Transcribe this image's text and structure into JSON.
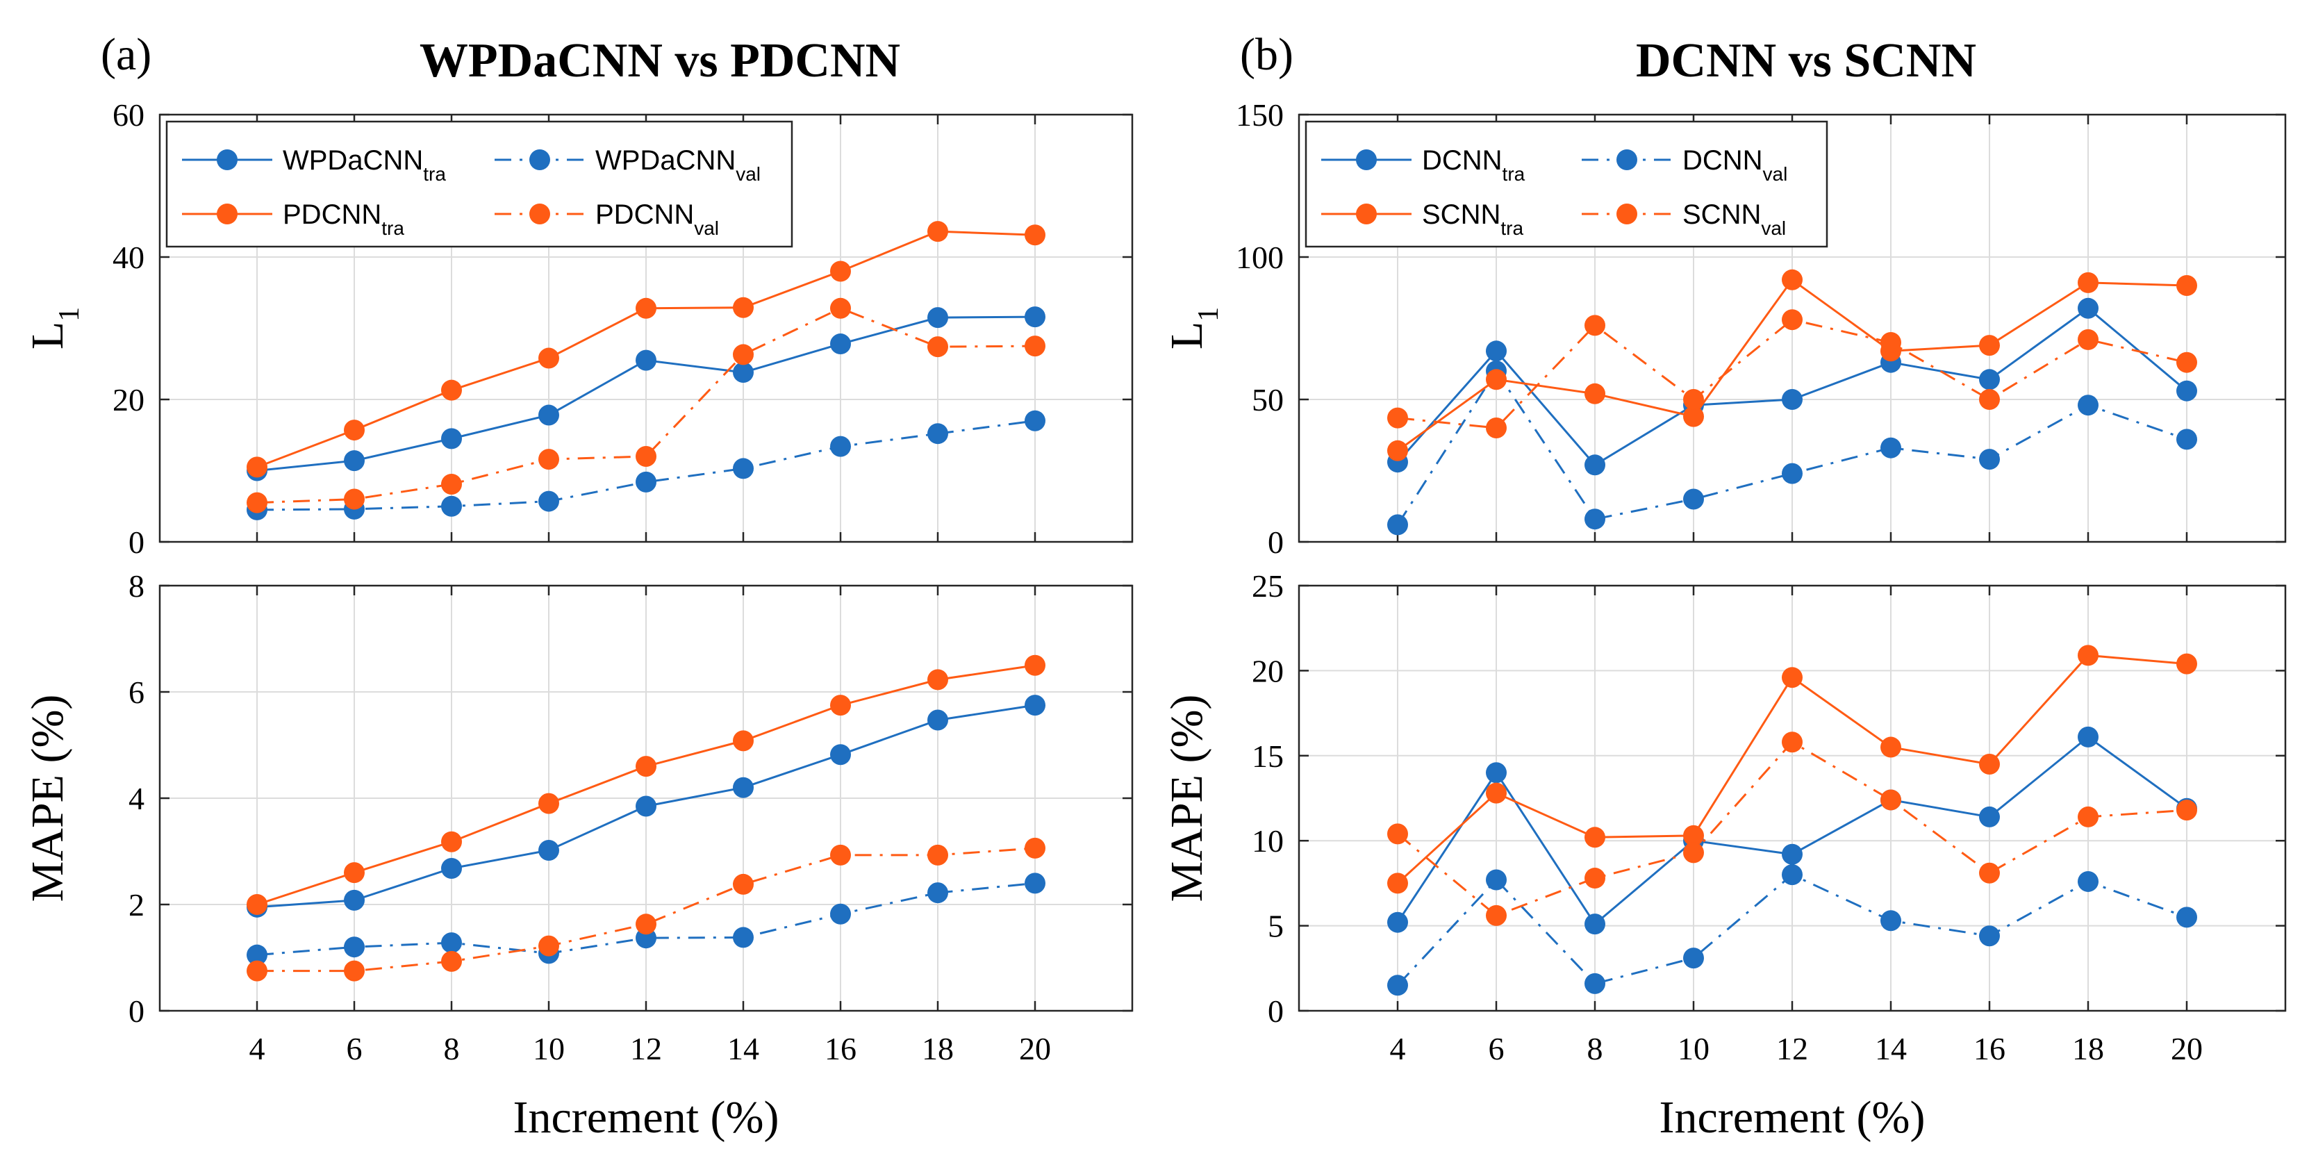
{
  "colors": {
    "blue": "#1f6fc0",
    "orange": "#ff5b14"
  },
  "chart_data": [
    {
      "id": "a-top",
      "type": "line",
      "panel_label": "(a)",
      "title": "WPDaCNN vs PDCNN",
      "xlabel": "",
      "ylabel": "L",
      "ylabel_sub": "1",
      "x": [
        4,
        6,
        8,
        10,
        12,
        14,
        16,
        18,
        20
      ],
      "xlim": [
        2,
        22
      ],
      "xticks": [
        "4",
        "6",
        "8",
        "10",
        "12",
        "14",
        "16",
        "18",
        "20"
      ],
      "show_xticklabels": false,
      "ylim": [
        0,
        60
      ],
      "yticks": [
        "0",
        "20",
        "40",
        "60"
      ],
      "grid": true,
      "legend_position": "top-left",
      "series": [
        {
          "name": "WPDaCNN",
          "sub": "tra",
          "color": "blue",
          "dash": false,
          "values": [
            10.0,
            11.4,
            14.5,
            17.8,
            25.5,
            23.8,
            27.8,
            31.5,
            31.6
          ]
        },
        {
          "name": "WPDaCNN",
          "sub": "val",
          "color": "blue",
          "dash": true,
          "values": [
            4.5,
            4.6,
            5.0,
            5.7,
            8.4,
            10.3,
            13.4,
            15.2,
            17.0
          ]
        },
        {
          "name": "PDCNN",
          "sub": "tra",
          "color": "orange",
          "dash": false,
          "values": [
            10.5,
            15.7,
            21.3,
            25.8,
            32.8,
            32.9,
            38.0,
            43.6,
            43.1
          ]
        },
        {
          "name": "PDCNN",
          "sub": "val",
          "color": "orange",
          "dash": true,
          "values": [
            5.5,
            6.0,
            8.1,
            11.6,
            12.0,
            26.3,
            32.8,
            27.4,
            27.5
          ]
        }
      ]
    },
    {
      "id": "a-bottom",
      "type": "line",
      "title": "",
      "xlabel": "Increment (%)",
      "ylabel": "MAPE (%)",
      "ylabel_sub": "",
      "x": [
        4,
        6,
        8,
        10,
        12,
        14,
        16,
        18,
        20
      ],
      "xlim": [
        2,
        22
      ],
      "xticks": [
        "4",
        "6",
        "8",
        "10",
        "12",
        "14",
        "16",
        "18",
        "20"
      ],
      "show_xticklabels": true,
      "ylim": [
        0,
        8
      ],
      "yticks": [
        "0",
        "2",
        "4",
        "6",
        "8"
      ],
      "grid": true,
      "legend_position": "none",
      "series": [
        {
          "name": "WPDaCNN",
          "sub": "tra",
          "color": "blue",
          "dash": false,
          "values": [
            1.95,
            2.08,
            2.68,
            3.02,
            3.85,
            4.2,
            4.82,
            5.47,
            5.75
          ]
        },
        {
          "name": "WPDaCNN",
          "sub": "val",
          "color": "blue",
          "dash": true,
          "values": [
            1.05,
            1.2,
            1.28,
            1.08,
            1.37,
            1.38,
            1.82,
            2.22,
            2.4
          ]
        },
        {
          "name": "PDCNN",
          "sub": "tra",
          "color": "orange",
          "dash": false,
          "values": [
            2.0,
            2.6,
            3.18,
            3.9,
            4.6,
            5.08,
            5.75,
            6.23,
            6.5
          ]
        },
        {
          "name": "PDCNN",
          "sub": "val",
          "color": "orange",
          "dash": true,
          "values": [
            0.75,
            0.75,
            0.93,
            1.22,
            1.63,
            2.38,
            2.93,
            2.93,
            3.06
          ]
        }
      ]
    },
    {
      "id": "b-top",
      "type": "line",
      "panel_label": "(b)",
      "title": "DCNN vs SCNN",
      "xlabel": "",
      "ylabel": "L",
      "ylabel_sub": "1",
      "x": [
        4,
        6,
        8,
        10,
        12,
        14,
        16,
        18,
        20
      ],
      "xlim": [
        2,
        22
      ],
      "xticks": [
        "4",
        "6",
        "8",
        "10",
        "12",
        "14",
        "16",
        "18",
        "20"
      ],
      "show_xticklabels": false,
      "ylim": [
        0,
        150
      ],
      "yticks": [
        "0",
        "50",
        "100",
        "150"
      ],
      "grid": true,
      "legend_position": "top-left",
      "series": [
        {
          "name": "DCNN",
          "sub": "tra",
          "color": "blue",
          "dash": false,
          "values": [
            28,
            67,
            27,
            48,
            50,
            63,
            57,
            82,
            53
          ]
        },
        {
          "name": "DCNN",
          "sub": "val",
          "color": "blue",
          "dash": true,
          "values": [
            6,
            60,
            8,
            15,
            24,
            33,
            29,
            48,
            36
          ]
        },
        {
          "name": "SCNN",
          "sub": "tra",
          "color": "orange",
          "dash": false,
          "values": [
            32,
            57,
            52,
            44,
            92,
            67,
            69,
            91,
            90
          ]
        },
        {
          "name": "SCNN",
          "sub": "val",
          "color": "orange",
          "dash": true,
          "values": [
            43.5,
            40,
            76,
            50,
            78,
            70,
            50,
            71,
            63
          ]
        }
      ]
    },
    {
      "id": "b-bottom",
      "type": "line",
      "title": "",
      "xlabel": "Increment (%)",
      "ylabel": "MAPE (%)",
      "ylabel_sub": "",
      "x": [
        4,
        6,
        8,
        10,
        12,
        14,
        16,
        18,
        20
      ],
      "xlim": [
        2,
        22
      ],
      "xticks": [
        "4",
        "6",
        "8",
        "10",
        "12",
        "14",
        "16",
        "18",
        "20"
      ],
      "show_xticklabels": true,
      "ylim": [
        0,
        25
      ],
      "yticks": [
        "0",
        "5",
        "10",
        "15",
        "20",
        "25"
      ],
      "grid": true,
      "legend_position": "none",
      "series": [
        {
          "name": "DCNN",
          "sub": "tra",
          "color": "blue",
          "dash": false,
          "values": [
            5.2,
            14.0,
            5.1,
            10.0,
            9.2,
            12.4,
            11.4,
            16.1,
            11.9
          ]
        },
        {
          "name": "DCNN",
          "sub": "val",
          "color": "blue",
          "dash": true,
          "values": [
            1.5,
            7.7,
            1.6,
            3.1,
            8.0,
            5.3,
            4.4,
            7.6,
            5.5
          ]
        },
        {
          "name": "SCNN",
          "sub": "tra",
          "color": "orange",
          "dash": false,
          "values": [
            7.5,
            12.8,
            10.2,
            10.3,
            19.6,
            15.5,
            14.5,
            20.9,
            20.4
          ]
        },
        {
          "name": "SCNN",
          "sub": "val",
          "color": "orange",
          "dash": true,
          "values": [
            10.4,
            5.6,
            7.8,
            9.3,
            15.8,
            12.4,
            8.1,
            11.4,
            11.8
          ]
        }
      ]
    }
  ]
}
